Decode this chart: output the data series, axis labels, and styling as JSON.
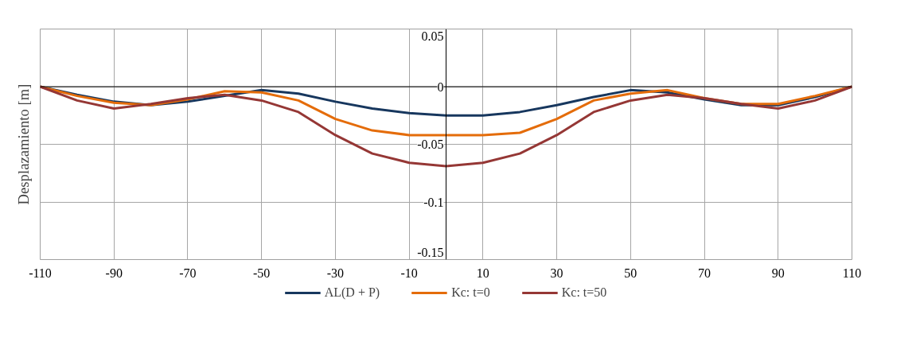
{
  "chart_data": {
    "type": "line",
    "ylabel": "Desplazamiento [m]",
    "x": [
      -110,
      -100,
      -90,
      -80,
      -70,
      -60,
      -50,
      -40,
      -30,
      -20,
      -10,
      0,
      10,
      20,
      30,
      40,
      50,
      60,
      70,
      80,
      90,
      100,
      110
    ],
    "series": [
      {
        "name": "AL(D + P)",
        "color": "#17375e",
        "values": [
          0,
          -0.007,
          -0.013,
          -0.016,
          -0.013,
          -0.008,
          -0.003,
          -0.006,
          -0.013,
          -0.019,
          -0.023,
          -0.025,
          -0.025,
          -0.022,
          -0.016,
          -0.009,
          -0.003,
          -0.005,
          -0.011,
          -0.016,
          -0.016,
          -0.009,
          0
        ]
      },
      {
        "name": "Kc: t=0",
        "color": "#e46c0a",
        "values": [
          0,
          -0.008,
          -0.014,
          -0.016,
          -0.011,
          -0.004,
          -0.005,
          -0.012,
          -0.028,
          -0.038,
          -0.042,
          -0.042,
          -0.042,
          -0.04,
          -0.028,
          -0.012,
          -0.006,
          -0.003,
          -0.01,
          -0.015,
          -0.015,
          -0.008,
          0
        ]
      },
      {
        "name": "Kc: t=50",
        "color": "#953735",
        "values": [
          0,
          -0.012,
          -0.019,
          -0.015,
          -0.01,
          -0.007,
          -0.012,
          -0.022,
          -0.042,
          -0.058,
          -0.066,
          -0.069,
          -0.066,
          -0.058,
          -0.042,
          -0.022,
          -0.012,
          -0.007,
          -0.01,
          -0.015,
          -0.019,
          -0.012,
          0
        ]
      }
    ],
    "xlim": [
      -110,
      110
    ],
    "xticks": [
      -110,
      -90,
      -70,
      -50,
      -30,
      -10,
      10,
      30,
      50,
      70,
      90,
      110
    ],
    "ylim": [
      -0.15,
      0.05
    ],
    "yticks": [
      -0.15,
      -0.1,
      -0.05,
      0,
      0.05
    ],
    "grid": true,
    "legend": "bottom",
    "marker": "none",
    "line_style": "solid"
  }
}
